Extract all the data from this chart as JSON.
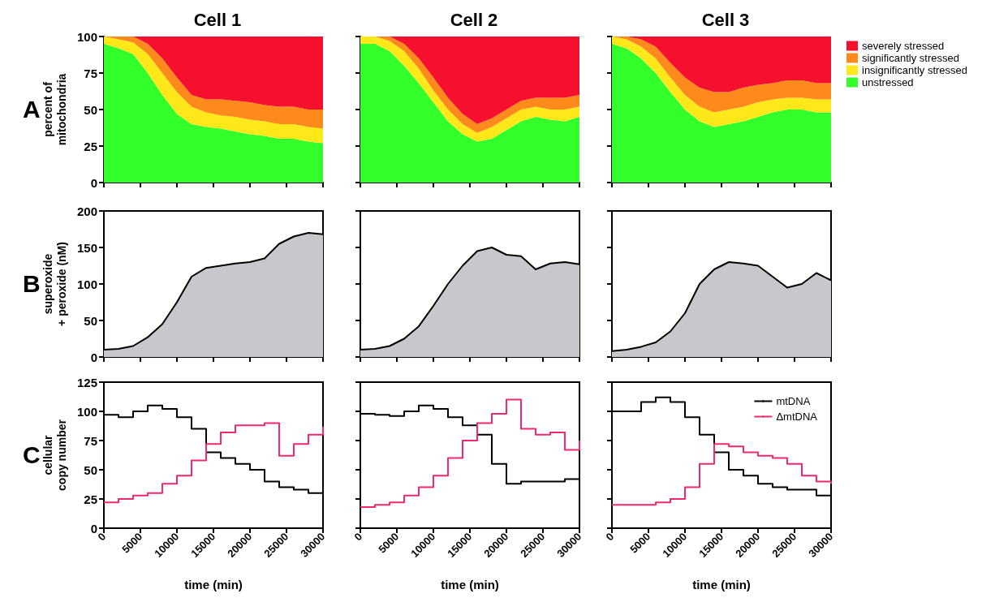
{
  "chart_data": [
    {
      "type": "area",
      "stacked": true,
      "title": "Cell 1",
      "ylabel": "percent of\nmitochondria",
      "annotations": [
        "A"
      ],
      "x": [
        0,
        2000,
        4000,
        6000,
        8000,
        10000,
        12000,
        14000,
        16000,
        18000,
        20000,
        22000,
        24000,
        26000,
        28000,
        30000
      ],
      "xlim": [
        0,
        30000
      ],
      "xticks": [
        0,
        5000,
        10000,
        15000,
        20000,
        25000,
        30000
      ],
      "ylim": [
        0,
        100
      ],
      "yticks": [
        0,
        25,
        50,
        75,
        100
      ],
      "tick_labels": "y",
      "grid": false,
      "marker": "none",
      "series": [
        {
          "color": "#33ff2a",
          "values": [
            95,
            92,
            88,
            75,
            60,
            47,
            40,
            38,
            37,
            35,
            33,
            32,
            30,
            30,
            28,
            27
          ]
        },
        {
          "color": "#ffe81a",
          "values": [
            5,
            6,
            8,
            13,
            15,
            15,
            12,
            10,
            9,
            10,
            10,
            10,
            10,
            10,
            10,
            10
          ]
        },
        {
          "color": "#ff8a1c",
          "values": [
            0,
            2,
            4,
            7,
            10,
            10,
            8,
            9,
            11,
            11,
            12,
            11,
            12,
            12,
            12,
            13
          ]
        },
        {
          "color": "#f5102e",
          "values": [
            0,
            0,
            0,
            5,
            15,
            28,
            40,
            43,
            43,
            44,
            45,
            47,
            48,
            48,
            50,
            50
          ]
        }
      ]
    },
    {
      "type": "area",
      "stacked": true,
      "title": "Cell 2",
      "x": [
        0,
        2000,
        4000,
        6000,
        8000,
        10000,
        12000,
        14000,
        16000,
        18000,
        20000,
        22000,
        24000,
        26000,
        28000,
        30000
      ],
      "xlim": [
        0,
        30000
      ],
      "xticks": [
        0,
        5000,
        10000,
        15000,
        20000,
        25000,
        30000
      ],
      "ylim": [
        0,
        100
      ],
      "yticks": [
        0,
        25,
        50,
        75,
        100
      ],
      "tick_labels": false,
      "grid": false,
      "marker": "none",
      "series": [
        {
          "color": "#33ff2a",
          "values": [
            95,
            95,
            90,
            80,
            68,
            55,
            42,
            33,
            28,
            30,
            36,
            42,
            45,
            43,
            42,
            45
          ]
        },
        {
          "color": "#ffe81a",
          "values": [
            5,
            5,
            7,
            10,
            10,
            8,
            8,
            7,
            6,
            8,
            8,
            8,
            7,
            7,
            8,
            7
          ]
        },
        {
          "color": "#ff8a1c",
          "values": [
            0,
            0,
            3,
            5,
            7,
            9,
            8,
            7,
            6,
            6,
            6,
            6,
            6,
            8,
            8,
            8
          ]
        },
        {
          "color": "#f5102e",
          "values": [
            0,
            0,
            0,
            5,
            15,
            28,
            42,
            53,
            60,
            56,
            50,
            44,
            42,
            42,
            42,
            40
          ]
        }
      ]
    },
    {
      "type": "area",
      "stacked": true,
      "title": "Cell 3",
      "x": [
        0,
        2000,
        4000,
        6000,
        8000,
        10000,
        12000,
        14000,
        16000,
        18000,
        20000,
        22000,
        24000,
        26000,
        28000,
        30000
      ],
      "xlim": [
        0,
        30000
      ],
      "xticks": [
        0,
        5000,
        10000,
        15000,
        20000,
        25000,
        30000
      ],
      "ylim": [
        0,
        100
      ],
      "yticks": [
        0,
        25,
        50,
        75,
        100
      ],
      "tick_labels": false,
      "grid": false,
      "marker": "none",
      "legend": "right",
      "series": [
        {
          "name": "unstressed",
          "color": "#33ff2a",
          "values": [
            95,
            92,
            85,
            75,
            62,
            50,
            42,
            38,
            40,
            42,
            45,
            48,
            50,
            50,
            48,
            48
          ]
        },
        {
          "name": "insignificantly stressed",
          "color": "#ffe81a",
          "values": [
            5,
            6,
            8,
            10,
            10,
            10,
            10,
            10,
            10,
            10,
            10,
            9,
            8,
            8,
            9,
            9
          ]
        },
        {
          "name": "significantly stressed",
          "color": "#ff8a1c",
          "values": [
            0,
            2,
            5,
            8,
            10,
            12,
            13,
            14,
            12,
            13,
            12,
            11,
            12,
            12,
            11,
            11
          ]
        },
        {
          "name": "severely stressed",
          "color": "#f5102e",
          "values": [
            0,
            0,
            2,
            7,
            18,
            28,
            35,
            38,
            38,
            35,
            33,
            32,
            30,
            30,
            32,
            32
          ]
        }
      ]
    },
    {
      "type": "area",
      "ylabel": "superoxide\n+ peroxide (nM)",
      "annotations": [
        "B"
      ],
      "x": [
        0,
        2000,
        4000,
        6000,
        8000,
        10000,
        12000,
        14000,
        16000,
        18000,
        20000,
        22000,
        24000,
        26000,
        28000,
        30000
      ],
      "xlim": [
        0,
        30000
      ],
      "xticks": [
        0,
        5000,
        10000,
        15000,
        20000,
        25000,
        30000
      ],
      "ylim": [
        0,
        200
      ],
      "yticks": [
        0,
        50,
        100,
        150,
        200
      ],
      "tick_labels": "y",
      "grid": false,
      "marker": "none",
      "series": [
        {
          "color": "#c8c8cc",
          "values": [
            10,
            11,
            15,
            27,
            45,
            75,
            110,
            122,
            125,
            128,
            130,
            135,
            155,
            165,
            170,
            168
          ]
        }
      ]
    },
    {
      "type": "area",
      "x": [
        0,
        2000,
        4000,
        6000,
        8000,
        10000,
        12000,
        14000,
        16000,
        18000,
        20000,
        22000,
        24000,
        26000,
        28000,
        30000
      ],
      "xlim": [
        0,
        30000
      ],
      "xticks": [
        0,
        5000,
        10000,
        15000,
        20000,
        25000,
        30000
      ],
      "ylim": [
        0,
        200
      ],
      "yticks": [
        0,
        50,
        100,
        150,
        200
      ],
      "tick_labels": false,
      "grid": false,
      "marker": "none",
      "series": [
        {
          "color": "#c8c8cc",
          "values": [
            10,
            11,
            15,
            25,
            42,
            70,
            100,
            125,
            145,
            150,
            140,
            138,
            120,
            128,
            130,
            127
          ]
        }
      ]
    },
    {
      "type": "area",
      "x": [
        0,
        2000,
        4000,
        6000,
        8000,
        10000,
        12000,
        14000,
        16000,
        18000,
        20000,
        22000,
        24000,
        26000,
        28000,
        30000
      ],
      "xlim": [
        0,
        30000
      ],
      "xticks": [
        0,
        5000,
        10000,
        15000,
        20000,
        25000,
        30000
      ],
      "ylim": [
        0,
        200
      ],
      "yticks": [
        0,
        50,
        100,
        150,
        200
      ],
      "tick_labels": false,
      "grid": false,
      "marker": "none",
      "series": [
        {
          "color": "#c8c8cc",
          "values": [
            8,
            10,
            14,
            20,
            35,
            60,
            100,
            120,
            130,
            128,
            125,
            110,
            95,
            100,
            115,
            105
          ]
        }
      ]
    },
    {
      "type": "step",
      "ylabel": "cellular\ncopy number",
      "xlabel": "time (min)",
      "annotations": [
        "C"
      ],
      "x": [
        0,
        2000,
        4000,
        6000,
        8000,
        10000,
        12000,
        14000,
        16000,
        18000,
        20000,
        22000,
        24000,
        26000,
        28000,
        30000
      ],
      "xlim": [
        0,
        30000
      ],
      "xticks": [
        0,
        5000,
        10000,
        15000,
        20000,
        25000,
        30000
      ],
      "ylim": [
        0,
        125
      ],
      "yticks": [
        0,
        25,
        50,
        75,
        100,
        125
      ],
      "grid": false,
      "marker": "none",
      "series": [
        {
          "color": "#000000",
          "values": [
            97,
            95,
            100,
            105,
            102,
            95,
            85,
            65,
            60,
            55,
            50,
            40,
            35,
            33,
            30,
            35
          ]
        },
        {
          "color": "#ee2a6b",
          "values": [
            22,
            25,
            28,
            30,
            38,
            45,
            58,
            72,
            82,
            88,
            88,
            90,
            62,
            72,
            80,
            87
          ]
        }
      ]
    },
    {
      "type": "step",
      "xlabel": "time (min)",
      "x": [
        0,
        2000,
        4000,
        6000,
        8000,
        10000,
        12000,
        14000,
        16000,
        18000,
        20000,
        22000,
        24000,
        26000,
        28000,
        30000
      ],
      "xlim": [
        0,
        30000
      ],
      "xticks": [
        0,
        5000,
        10000,
        15000,
        20000,
        25000,
        30000
      ],
      "ylim": [
        0,
        125
      ],
      "yticks": [
        0,
        25,
        50,
        75,
        100,
        125
      ],
      "tick_labels": "x",
      "grid": false,
      "marker": "none",
      "series": [
        {
          "color": "#000000",
          "values": [
            98,
            97,
            96,
            100,
            105,
            102,
            95,
            88,
            80,
            55,
            38,
            40,
            40,
            40,
            42,
            43
          ]
        },
        {
          "color": "#ee2a6b",
          "values": [
            18,
            20,
            22,
            28,
            35,
            45,
            60,
            75,
            90,
            98,
            110,
            85,
            80,
            82,
            67,
            75
          ]
        }
      ]
    },
    {
      "type": "step",
      "xlabel": "time (min)",
      "x": [
        0,
        2000,
        4000,
        6000,
        8000,
        10000,
        12000,
        14000,
        16000,
        18000,
        20000,
        22000,
        24000,
        26000,
        28000,
        30000
      ],
      "xlim": [
        0,
        30000
      ],
      "xticks": [
        0,
        5000,
        10000,
        15000,
        20000,
        25000,
        30000
      ],
      "ylim": [
        0,
        125
      ],
      "yticks": [
        0,
        25,
        50,
        75,
        100,
        125
      ],
      "tick_labels": "x",
      "grid": false,
      "marker": "none",
      "legend": "top right",
      "series": [
        {
          "name": "mtDNA",
          "color": "#000000",
          "values": [
            100,
            100,
            108,
            112,
            108,
            95,
            80,
            65,
            50,
            45,
            38,
            35,
            33,
            33,
            28,
            18
          ]
        },
        {
          "name": "ΔmtDNA",
          "color": "#ee2a6b",
          "values": [
            20,
            20,
            20,
            22,
            25,
            35,
            55,
            72,
            70,
            65,
            62,
            60,
            55,
            45,
            40,
            38
          ]
        }
      ]
    }
  ]
}
